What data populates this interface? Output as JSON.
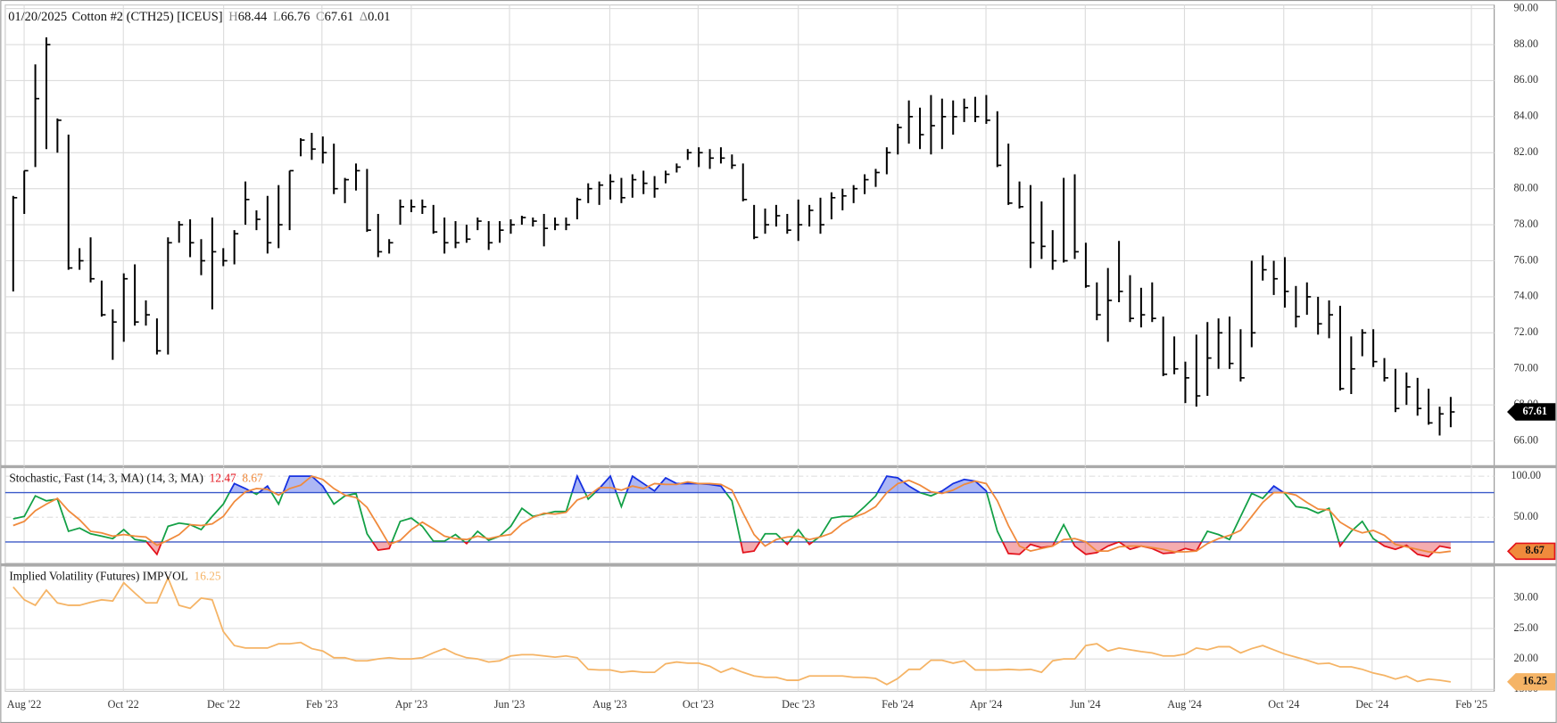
{
  "header": {
    "date": "01/20/2025",
    "name": "Cotton #2 (CTH25) [ICEUS]",
    "items": [
      {
        "label": "H",
        "value": 68.44
      },
      {
        "label": "L",
        "value": 66.76
      },
      {
        "label": "C",
        "value": 67.61
      },
      {
        "label": "Δ",
        "value": 0.01
      }
    ]
  },
  "chart_data": [
    {
      "type": "ohlc",
      "color": "#000000",
      "xlim": [
        -0.72,
        133.93
      ],
      "ylim": [
        64.6,
        90.2
      ],
      "grid": true,
      "yticks": [
        {
          "value": 66,
          "label": "66.00"
        },
        {
          "value": 68,
          "label": "68.00"
        },
        {
          "value": 70,
          "label": "70.00"
        },
        {
          "value": 72,
          "label": "72.00"
        },
        {
          "value": 74,
          "label": "74.00"
        },
        {
          "value": 76,
          "label": "76.00"
        },
        {
          "value": 78,
          "label": "78.00"
        },
        {
          "value": 80,
          "label": "80.00"
        },
        {
          "value": 82,
          "label": "82.00"
        },
        {
          "value": 84,
          "label": "84.00"
        },
        {
          "value": 86,
          "label": "86.00"
        },
        {
          "value": 88,
          "label": "88.00"
        },
        {
          "value": 90,
          "label": "90.00"
        }
      ],
      "high": [
        79.6,
        81,
        86.9,
        88.4,
        83.9,
        83,
        76.7,
        77.3,
        74.9,
        73.3,
        75.3,
        75.8,
        73.8,
        72.8,
        77.3,
        78.2,
        78.3,
        77.2,
        78.4,
        76.7,
        77.7,
        80.4,
        78.8,
        79.6,
        80.2,
        81,
        82.8,
        83.1,
        82.9,
        82.5,
        80.6,
        81.4,
        81.1,
        78.6,
        77.2,
        79.4,
        79.4,
        79.4,
        79.1,
        78.4,
        78.2,
        78,
        78.4,
        78.2,
        78.2,
        78.3,
        78.5,
        78.4,
        78.6,
        78.4,
        78.4,
        79.5,
        80.3,
        80.4,
        80.8,
        80.6,
        80.8,
        81,
        80.7,
        81,
        81.4,
        82.2,
        82.3,
        82.2,
        82.3,
        81.9,
        81.4,
        79.1,
        78.9,
        79.1,
        78.6,
        79.4,
        79.1,
        79.5,
        79.8,
        80,
        80.2,
        80.8,
        81.1,
        82.3,
        83.6,
        84.9,
        84.5,
        85.2,
        85,
        84.9,
        85,
        85.1,
        85.2,
        84.3,
        82.5,
        80.4,
        80.2,
        79.3,
        77.7,
        80.6,
        80.8,
        77,
        74.8,
        75.6,
        77.1,
        75.2,
        74.5,
        74.8,
        72.9,
        71.8,
        70.4,
        71.9,
        72.6,
        72.8,
        72.9,
        72.2,
        76,
        76.3,
        76,
        76.2,
        74.6,
        74.8,
        74,
        73.8,
        73.5,
        71.8,
        72.2,
        72.2,
        70.6,
        70,
        69.8,
        69.5,
        68.9,
        67.9,
        68.44
      ],
      "low": [
        74.3,
        78.6,
        81.2,
        82.2,
        82,
        75.5,
        75.5,
        74.8,
        72.9,
        70.5,
        71.5,
        72.4,
        72.4,
        70.8,
        70.8,
        77,
        76.2,
        75.2,
        73.3,
        75.7,
        75.8,
        78,
        77.7,
        76.4,
        76.7,
        77.7,
        81.8,
        81.6,
        81.4,
        79.7,
        79.2,
        79.9,
        77.6,
        76.2,
        76.4,
        78,
        78.7,
        78.6,
        77.5,
        76.4,
        76.7,
        77,
        77.7,
        76.6,
        77,
        77.5,
        78,
        77.9,
        76.8,
        77.7,
        77.7,
        78.3,
        79.2,
        79.1,
        79.4,
        79.2,
        79.5,
        79.7,
        79.5,
        80.3,
        80.9,
        81.6,
        81.2,
        81.1,
        81.4,
        81.1,
        79.3,
        77.2,
        77.5,
        77.9,
        77.5,
        77.1,
        77.9,
        77.5,
        78.3,
        78.8,
        79.2,
        79.7,
        80.1,
        80.8,
        81.9,
        82.5,
        82.2,
        81.9,
        82.2,
        83,
        83.7,
        83.7,
        83.6,
        81.2,
        79.1,
        78.9,
        75.6,
        76.1,
        75.5,
        75.9,
        76.1,
        74.5,
        72.7,
        71.5,
        73.7,
        72.6,
        72.3,
        72.6,
        69.6,
        69.7,
        68.1,
        67.9,
        68.5,
        70,
        70,
        69.3,
        71.2,
        74.9,
        74.1,
        73.4,
        72.3,
        73,
        71.9,
        71.7,
        68.8,
        68.6,
        70.7,
        70.1,
        69.3,
        67.6,
        68,
        67.4,
        66.9,
        66.3,
        66.76
      ],
      "close": [
        79.5,
        81,
        85,
        88,
        83.8,
        75.6,
        76,
        75,
        73,
        72.6,
        75,
        72.6,
        73,
        71,
        77,
        78,
        77,
        76,
        76.5,
        76,
        77.5,
        79.4,
        78.3,
        77,
        78,
        81,
        82.7,
        82.2,
        82,
        80,
        80.5,
        81,
        77.7,
        76.5,
        77,
        79,
        79,
        79,
        77.6,
        77,
        77,
        77.2,
        78.2,
        77,
        77.7,
        78,
        78.4,
        78.2,
        77.8,
        78,
        78,
        79.4,
        80,
        80.2,
        80.4,
        79.5,
        80.5,
        80.3,
        80,
        80.8,
        81.2,
        82,
        82,
        81.7,
        81.7,
        81.3,
        79.4,
        77.3,
        78,
        78.5,
        77.7,
        78,
        78.8,
        78,
        79.5,
        79.6,
        80,
        80.5,
        80.9,
        82,
        83.4,
        84,
        83,
        83.5,
        84,
        84,
        84.5,
        84,
        83.8,
        81.3,
        79.2,
        79,
        77,
        76.8,
        76,
        76,
        76.5,
        74.6,
        73,
        73.8,
        74.3,
        72.8,
        73,
        72.8,
        69.7,
        70,
        69.5,
        68.5,
        70.6,
        72,
        70.3,
        69.5,
        72,
        75.5,
        75,
        74.3,
        72.9,
        74,
        72.5,
        73,
        68.9,
        70,
        72,
        70.4,
        69.5,
        67.8,
        69,
        67.8,
        67,
        67.5,
        67.61
      ]
    },
    {
      "type": "line",
      "title": "Stochastic, Fast (14, 3, MA) (14, 3, MA)",
      "xlim": [
        -0.72,
        133.93
      ],
      "ylim": [
        -6,
        111
      ],
      "grid": true,
      "levels": [
        20,
        80
      ],
      "level_color": "#3b5bc9",
      "yticks": [
        {
          "value": 50,
          "label": "50.00"
        },
        {
          "value": 100,
          "label": "100.00"
        }
      ],
      "series": [
        {
          "color": "#13a046",
          "above_color": "#1530e0",
          "below_color": "#e3121b",
          "values": [
            48,
            51,
            76,
            70,
            72,
            33,
            37,
            30,
            27,
            24,
            35,
            23,
            21,
            5,
            39,
            43,
            41,
            35,
            51,
            66,
            91,
            85,
            78,
            88,
            66,
            100,
            100,
            100,
            88,
            66,
            76,
            79,
            30,
            10,
            12,
            45,
            49,
            39,
            21,
            21,
            29,
            18,
            33,
            22,
            27,
            39,
            61,
            51,
            54,
            57,
            57,
            100,
            72,
            85,
            100,
            63,
            100,
            91,
            82,
            98,
            91,
            91,
            91,
            90,
            88,
            70,
            7,
            9,
            30,
            30,
            17,
            35,
            17,
            27,
            49,
            51,
            51,
            63,
            76,
            100,
            98,
            88,
            80,
            76,
            82,
            91,
            96,
            94,
            82,
            33,
            6,
            5,
            17,
            13,
            15,
            41,
            15,
            5,
            7,
            15,
            20,
            11,
            15,
            12,
            6,
            7,
            12,
            9,
            33,
            29,
            23,
            51,
            79,
            73,
            88,
            79,
            63,
            61,
            55,
            61,
            15,
            33,
            45,
            24,
            15,
            11,
            16,
            5,
            2,
            15,
            12.47
          ]
        },
        {
          "color": "#f08a3c",
          "values": [
            40,
            45,
            58,
            66,
            73,
            58,
            47,
            33,
            31,
            27,
            29,
            27,
            26,
            16,
            22,
            29,
            41,
            40,
            42,
            51,
            69,
            81,
            85,
            84,
            77,
            85,
            89,
            100,
            96,
            85,
            77,
            74,
            62,
            40,
            17,
            22,
            35,
            44,
            36,
            27,
            24,
            23,
            27,
            24,
            27,
            29,
            42,
            50,
            55,
            54,
            56,
            71,
            76,
            86,
            86,
            83,
            88,
            85,
            91,
            90,
            90,
            93,
            91,
            91,
            90,
            83,
            55,
            29,
            15,
            23,
            26,
            27,
            23,
            26,
            31,
            42,
            50,
            55,
            63,
            80,
            91,
            95,
            89,
            81,
            79,
            83,
            90,
            94,
            91,
            70,
            40,
            15,
            9,
            12,
            15,
            23,
            24,
            20,
            9,
            9,
            14,
            15,
            15,
            13,
            11,
            8,
            8,
            9,
            18,
            24,
            28,
            34,
            51,
            68,
            80,
            80,
            77,
            68,
            60,
            59,
            44,
            36,
            31,
            34,
            28,
            17,
            14,
            11,
            8,
            7,
            8.67
          ]
        }
      ]
    },
    {
      "type": "line",
      "title": "Implied Volatility (Futures) IMPVOL",
      "xlim": [
        -0.72,
        133.93
      ],
      "ylim": [
        14.7,
        35.2
      ],
      "grid": true,
      "color": "#f5b466",
      "yticks": [
        {
          "value": 15,
          "label": "15.00"
        },
        {
          "value": 20,
          "label": "20.00"
        },
        {
          "value": 25,
          "label": "25.00"
        },
        {
          "value": 30,
          "label": "30.00"
        }
      ],
      "xticks": [
        {
          "value": 0.99,
          "label": "Aug '22"
        },
        {
          "value": 9.96,
          "label": "Oct '22"
        },
        {
          "value": 19.03,
          "label": "Dec '22"
        },
        {
          "value": 27.92,
          "label": "Feb '23"
        },
        {
          "value": 36,
          "label": "Apr '23"
        },
        {
          "value": 44.88,
          "label": "Jun '23"
        },
        {
          "value": 53.95,
          "label": "Aug '23"
        },
        {
          "value": 61.94,
          "label": "Oct '23"
        },
        {
          "value": 71,
          "label": "Dec '23"
        },
        {
          "value": 79.98,
          "label": "Feb '24"
        },
        {
          "value": 87.97,
          "label": "Apr '24"
        },
        {
          "value": 96.95,
          "label": "Jun '24"
        },
        {
          "value": 105.92,
          "label": "Aug '24"
        },
        {
          "value": 114.9,
          "label": "Oct '24"
        },
        {
          "value": 122.89,
          "label": "Dec '24"
        },
        {
          "value": 131.87,
          "label": "Feb '25"
        }
      ],
      "values": [
        31.8,
        29.7,
        28.8,
        31.3,
        29.2,
        28.8,
        28.8,
        29.3,
        29.7,
        29.5,
        32.5,
        30.8,
        29.2,
        29.2,
        33.3,
        28.8,
        28.3,
        30,
        29.7,
        24.5,
        22.2,
        21.8,
        21.8,
        21.8,
        22.5,
        22.5,
        22.7,
        21.7,
        21.3,
        20.2,
        20.2,
        19.7,
        19.7,
        20,
        20.2,
        20,
        20,
        20.2,
        21,
        21.7,
        20.8,
        20.2,
        20,
        19.5,
        19.7,
        20.5,
        20.7,
        20.7,
        20.5,
        20.3,
        20.5,
        20.2,
        18.3,
        18.2,
        18.2,
        17.8,
        18,
        17.8,
        17.8,
        19.2,
        19.5,
        19.3,
        19.3,
        18.8,
        17.8,
        18.5,
        17.8,
        17.2,
        17,
        17,
        16.5,
        16.5,
        17.2,
        17.2,
        17.2,
        17.2,
        17,
        17,
        16.8,
        15.8,
        16.8,
        18.3,
        18.3,
        19.8,
        19.8,
        19.3,
        19.7,
        18.2,
        18.2,
        18.2,
        18.3,
        18.2,
        18.3,
        17.8,
        19.7,
        20,
        20,
        22.2,
        22.5,
        21.3,
        21.8,
        21.5,
        21.2,
        21,
        20.5,
        20.5,
        20.8,
        21.8,
        21.5,
        22,
        22,
        21,
        21.7,
        22.2,
        21.5,
        20.8,
        20.3,
        19.8,
        19.2,
        19.3,
        18.7,
        18.7,
        18.3,
        17.7,
        17.3,
        16.7,
        17.2,
        16.3,
        16.7,
        16.5,
        16.25
      ]
    }
  ]
}
